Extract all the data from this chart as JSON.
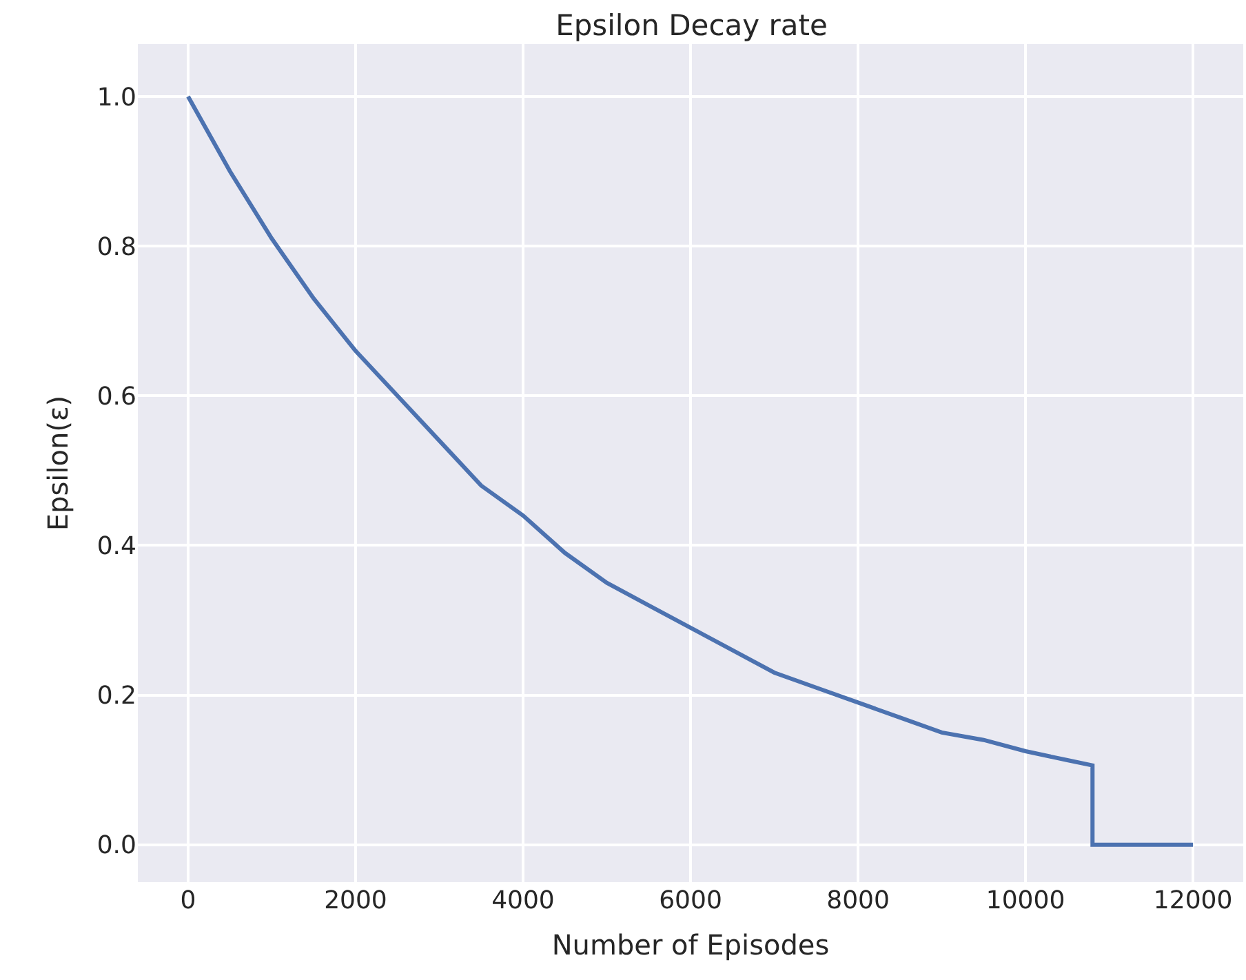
{
  "chart_data": {
    "type": "line",
    "title": "Epsilon Decay rate",
    "xlabel": "Number of Episodes",
    "ylabel": "Epsilon(ε)",
    "x": [
      0,
      500,
      1000,
      1500,
      2000,
      2500,
      3000,
      3500,
      4000,
      4500,
      5000,
      5500,
      6000,
      6500,
      7000,
      7500,
      8000,
      8500,
      9000,
      9500,
      10000,
      10500,
      10800,
      10800,
      12000
    ],
    "series": [
      {
        "color": "#4c72b0",
        "values": [
          1.0,
          0.9,
          0.81,
          0.73,
          0.66,
          0.6,
          0.54,
          0.48,
          0.44,
          0.39,
          0.35,
          0.32,
          0.29,
          0.26,
          0.23,
          0.21,
          0.19,
          0.17,
          0.15,
          0.14,
          0.125,
          0.113,
          0.106,
          0.0,
          0.0
        ]
      }
    ],
    "xlim": [
      -600,
      12600
    ],
    "xticks": [
      0,
      2000,
      4000,
      6000,
      8000,
      10000,
      12000
    ],
    "ylim": [
      -0.05,
      1.07
    ],
    "yticks": [
      {
        "value": 0,
        "label": "0.0"
      },
      {
        "value": 0.2,
        "label": "0.2"
      },
      {
        "value": 0.4,
        "label": "0.4"
      },
      {
        "value": 0.6,
        "label": "0.6"
      },
      {
        "value": 0.8,
        "label": "0.8"
      },
      {
        "value": 1.0,
        "label": "1.0"
      }
    ],
    "grid": true,
    "marker": "none",
    "line_style": "solid"
  }
}
